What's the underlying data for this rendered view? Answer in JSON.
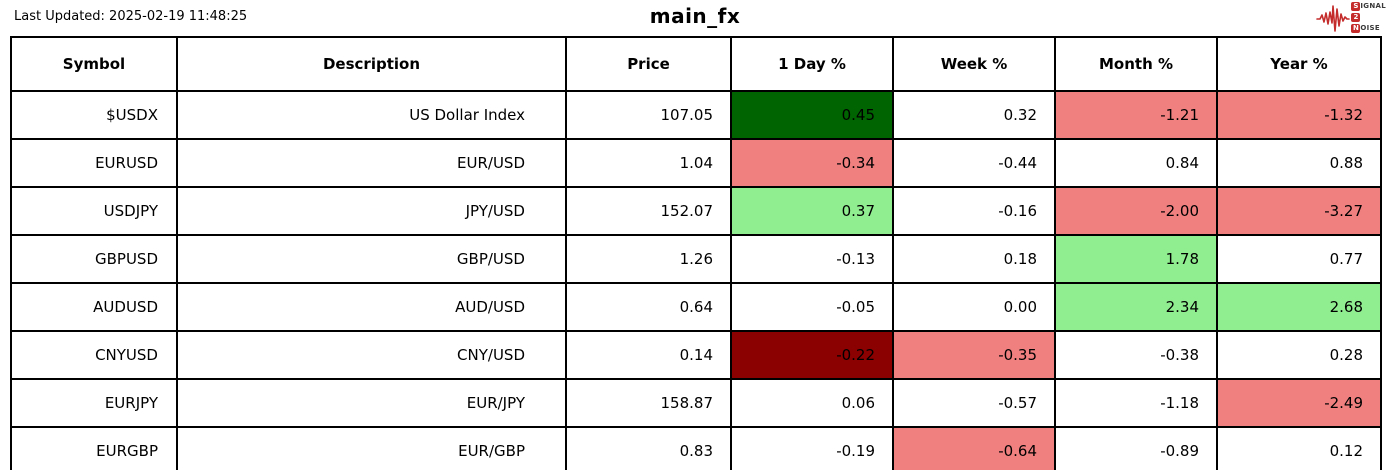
{
  "header": {
    "last_updated": "Last Updated: 2025-02-19 11:48:25",
    "title": "main_fx",
    "logo": {
      "chip1": "S",
      "rest1": "IGNAL",
      "chip2": "2",
      "rest2": "",
      "chip3": "N",
      "rest3": "OISE",
      "accent": "#c42b2b"
    }
  },
  "colors": {
    "darkgreen": "#006400",
    "lightgreen": "#90EE90",
    "lightcoral": "#F08080",
    "darkred": "#8B0000",
    "none": "#FFFFFF"
  },
  "chart_data": {
    "type": "table",
    "title": "main_fx",
    "columns": [
      "Symbol",
      "Description",
      "Price",
      "1 Day %",
      "Week %",
      "Month %",
      "Year %"
    ],
    "rows": [
      {
        "symbol": "$USDX",
        "description": "US Dollar Index",
        "price": "107.05",
        "day": {
          "value": "0.45",
          "bg": "darkgreen"
        },
        "week": {
          "value": "0.32",
          "bg": "none"
        },
        "month": {
          "value": "-1.21",
          "bg": "lightcoral"
        },
        "year": {
          "value": "-1.32",
          "bg": "lightcoral"
        }
      },
      {
        "symbol": "EURUSD",
        "description": "EUR/USD",
        "price": "1.04",
        "day": {
          "value": "-0.34",
          "bg": "lightcoral"
        },
        "week": {
          "value": "-0.44",
          "bg": "none"
        },
        "month": {
          "value": "0.84",
          "bg": "none"
        },
        "year": {
          "value": "0.88",
          "bg": "none"
        }
      },
      {
        "symbol": "USDJPY",
        "description": "JPY/USD",
        "price": "152.07",
        "day": {
          "value": "0.37",
          "bg": "lightgreen"
        },
        "week": {
          "value": "-0.16",
          "bg": "none"
        },
        "month": {
          "value": "-2.00",
          "bg": "lightcoral"
        },
        "year": {
          "value": "-3.27",
          "bg": "lightcoral"
        }
      },
      {
        "symbol": "GBPUSD",
        "description": "GBP/USD",
        "price": "1.26",
        "day": {
          "value": "-0.13",
          "bg": "none"
        },
        "week": {
          "value": "0.18",
          "bg": "none"
        },
        "month": {
          "value": "1.78",
          "bg": "lightgreen"
        },
        "year": {
          "value": "0.77",
          "bg": "none"
        }
      },
      {
        "symbol": "AUDUSD",
        "description": "AUD/USD",
        "price": "0.64",
        "day": {
          "value": "-0.05",
          "bg": "none"
        },
        "week": {
          "value": "0.00",
          "bg": "none"
        },
        "month": {
          "value": "2.34",
          "bg": "lightgreen"
        },
        "year": {
          "value": "2.68",
          "bg": "lightgreen"
        }
      },
      {
        "symbol": "CNYUSD",
        "description": "CNY/USD",
        "price": "0.14",
        "day": {
          "value": "-0.22",
          "bg": "darkred"
        },
        "week": {
          "value": "-0.35",
          "bg": "lightcoral"
        },
        "month": {
          "value": "-0.38",
          "bg": "none"
        },
        "year": {
          "value": "0.28",
          "bg": "none"
        }
      },
      {
        "symbol": "EURJPY",
        "description": "EUR/JPY",
        "price": "158.87",
        "day": {
          "value": "0.06",
          "bg": "none"
        },
        "week": {
          "value": "-0.57",
          "bg": "none"
        },
        "month": {
          "value": "-1.18",
          "bg": "none"
        },
        "year": {
          "value": "-2.49",
          "bg": "lightcoral"
        }
      },
      {
        "symbol": "EURGBP",
        "description": "EUR/GBP",
        "price": "0.83",
        "day": {
          "value": "-0.19",
          "bg": "none"
        },
        "week": {
          "value": "-0.64",
          "bg": "lightcoral"
        },
        "month": {
          "value": "-0.89",
          "bg": "none"
        },
        "year": {
          "value": "0.12",
          "bg": "none"
        }
      }
    ]
  }
}
